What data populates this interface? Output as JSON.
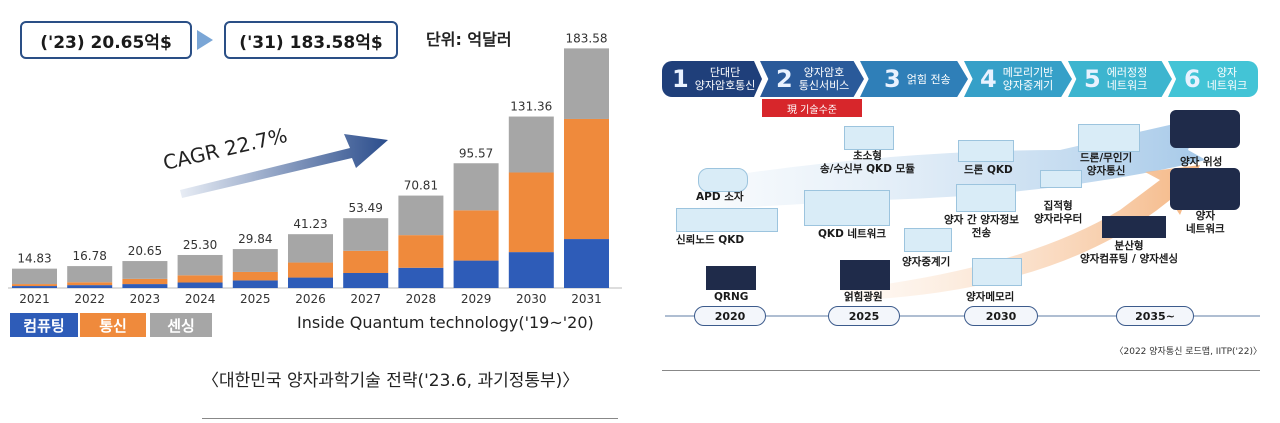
{
  "left": {
    "callout_2023": "('23) 20.65억$",
    "callout_2031": "('31) 183.58억$",
    "unit": "단위: 억달러",
    "cagr": "CAGR 22.7%",
    "source": "Inside Quantum technology('19~'20)",
    "caption": "〈대한민국 양자과학기술 전략('23.6, 과기정통부)〉",
    "legend": [
      {
        "label": "컴퓨팅",
        "color": "#2e5cb8"
      },
      {
        "label": "통신",
        "color": "#ef8a3c"
      },
      {
        "label": "센싱",
        "color": "#a6a6a6"
      }
    ]
  },
  "chart_data": {
    "type": "bar",
    "stacked": true,
    "categories": [
      "2021",
      "2022",
      "2023",
      "2024",
      "2025",
      "2026",
      "2027",
      "2028",
      "2029",
      "2030",
      "2031"
    ],
    "totals": [
      "14.83",
      "16.78",
      "20.65",
      "25.30",
      "29.84",
      "41.23",
      "53.49",
      "70.81",
      "95.57",
      "131.36",
      "183.58"
    ],
    "series": [
      {
        "name": "컴퓨팅",
        "color": "#2e5cb8",
        "values": [
          1.5,
          2.2,
          3.0,
          4.2,
          5.8,
          8.0,
          11.5,
          15.5,
          21.0,
          27.5,
          37.5
        ]
      },
      {
        "name": "통신",
        "color": "#ef8a3c",
        "values": [
          1.5,
          2.2,
          4.0,
          5.5,
          6.5,
          11.5,
          17.0,
          25.0,
          38.5,
          61.0,
          92.0
        ]
      },
      {
        "name": "센싱",
        "color": "#a6a6a6",
        "values": [
          11.83,
          12.38,
          13.65,
          15.6,
          17.54,
          21.73,
          24.99,
          30.31,
          36.07,
          42.86,
          54.08
        ]
      }
    ],
    "ylim": [
      0,
      190
    ]
  },
  "roadmap": {
    "steps": [
      {
        "num": "1",
        "label": "단대단\n양자암호통신",
        "color": "#1f3f7a"
      },
      {
        "num": "2",
        "label": "양자암호\n통신서비스",
        "color": "#2a5a9a"
      },
      {
        "num": "3",
        "label": "얽힘 전송",
        "color": "#2f7fb8"
      },
      {
        "num": "4",
        "label": "메모리기반\n양자중계기",
        "color": "#36a0c8"
      },
      {
        "num": "5",
        "label": "에러정정\n네트워크",
        "color": "#3db5cf"
      },
      {
        "num": "6",
        "label": "양자\n네트워크",
        "color": "#43c4d6"
      }
    ],
    "current_tag": "現 기술수준",
    "items": {
      "apd": "APD 소자",
      "trusted_node": "신뢰노드 QKD",
      "qrng": "QRNG",
      "micro_qkd": "초소형\n송/수신부 QKD 모듈",
      "qkd_network": "QKD 네트워크",
      "entangled_light": "얽힘광원",
      "repeater": "양자중계기",
      "drone_qkd": "드론 QKD",
      "info_transfer": "양자 간 양자정보\n전송",
      "memory": "양자메모리",
      "drone_comm": "드론/무인기\n양자통신",
      "router": "집적형\n양자라우터",
      "distributed": "분산형\n양자컴퓨팅 / 양자센싱",
      "satellite": "양자 위성",
      "qnet": "양자\n네트워크"
    },
    "years": [
      "2020",
      "2025",
      "2030",
      "2035~"
    ],
    "caption": "〈2022 양자통신 로드맵, IITP('22)〉"
  }
}
